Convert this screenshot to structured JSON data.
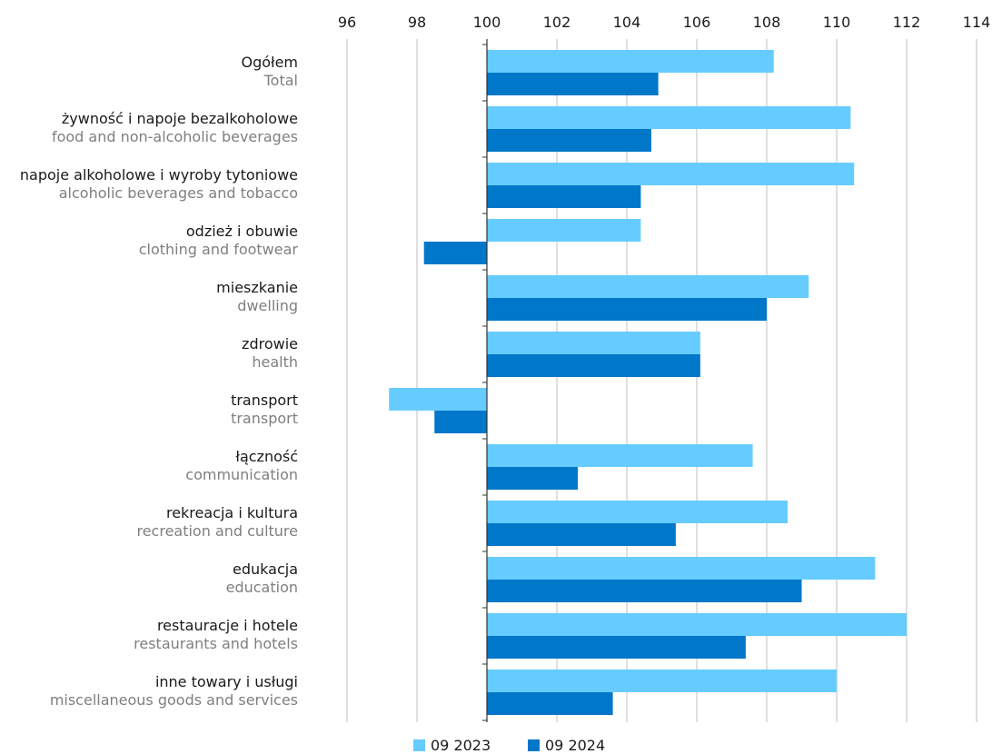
{
  "chart_data": {
    "type": "bar",
    "orientation": "horizontal",
    "baseline": 100,
    "xlim": [
      96,
      114
    ],
    "x_ticks": [
      "96",
      "98",
      "100",
      "102",
      "104",
      "106",
      "108",
      "110",
      "112",
      "114"
    ],
    "grid": true,
    "legend_position": "bottom",
    "categories": [
      {
        "pl": "Ogółem",
        "en": "Total"
      },
      {
        "pl": "żywność i napoje bezalkoholowe",
        "en": "food and non-alcoholic beverages"
      },
      {
        "pl": "napoje alkoholowe i wyroby tytoniowe",
        "en": "alcoholic beverages and tobacco"
      },
      {
        "pl": "odzież i obuwie",
        "en": "clothing and footwear"
      },
      {
        "pl": "mieszkanie",
        "en": "dwelling"
      },
      {
        "pl": "zdrowie",
        "en": "health"
      },
      {
        "pl": "transport",
        "en": "transport"
      },
      {
        "pl": "łączność",
        "en": "communication"
      },
      {
        "pl": "rekreacja i kultura",
        "en": "recreation and culture"
      },
      {
        "pl": "edukacja",
        "en": "education"
      },
      {
        "pl": "restauracje i hotele",
        "en": "restaurants and hotels"
      },
      {
        "pl": "inne towary i usługi",
        "en": "miscellaneous goods and services"
      }
    ],
    "series": [
      {
        "name": "09 2023",
        "color": "#66ccff",
        "values": [
          108.2,
          110.4,
          110.5,
          104.4,
          109.2,
          106.1,
          97.2,
          107.6,
          108.6,
          111.1,
          112.0,
          110.0
        ]
      },
      {
        "name": "09 2024",
        "color": "#0077c8",
        "values": [
          104.9,
          104.7,
          104.4,
          98.2,
          108.0,
          106.1,
          98.5,
          102.6,
          105.4,
          109.0,
          107.4,
          103.6
        ]
      }
    ]
  }
}
